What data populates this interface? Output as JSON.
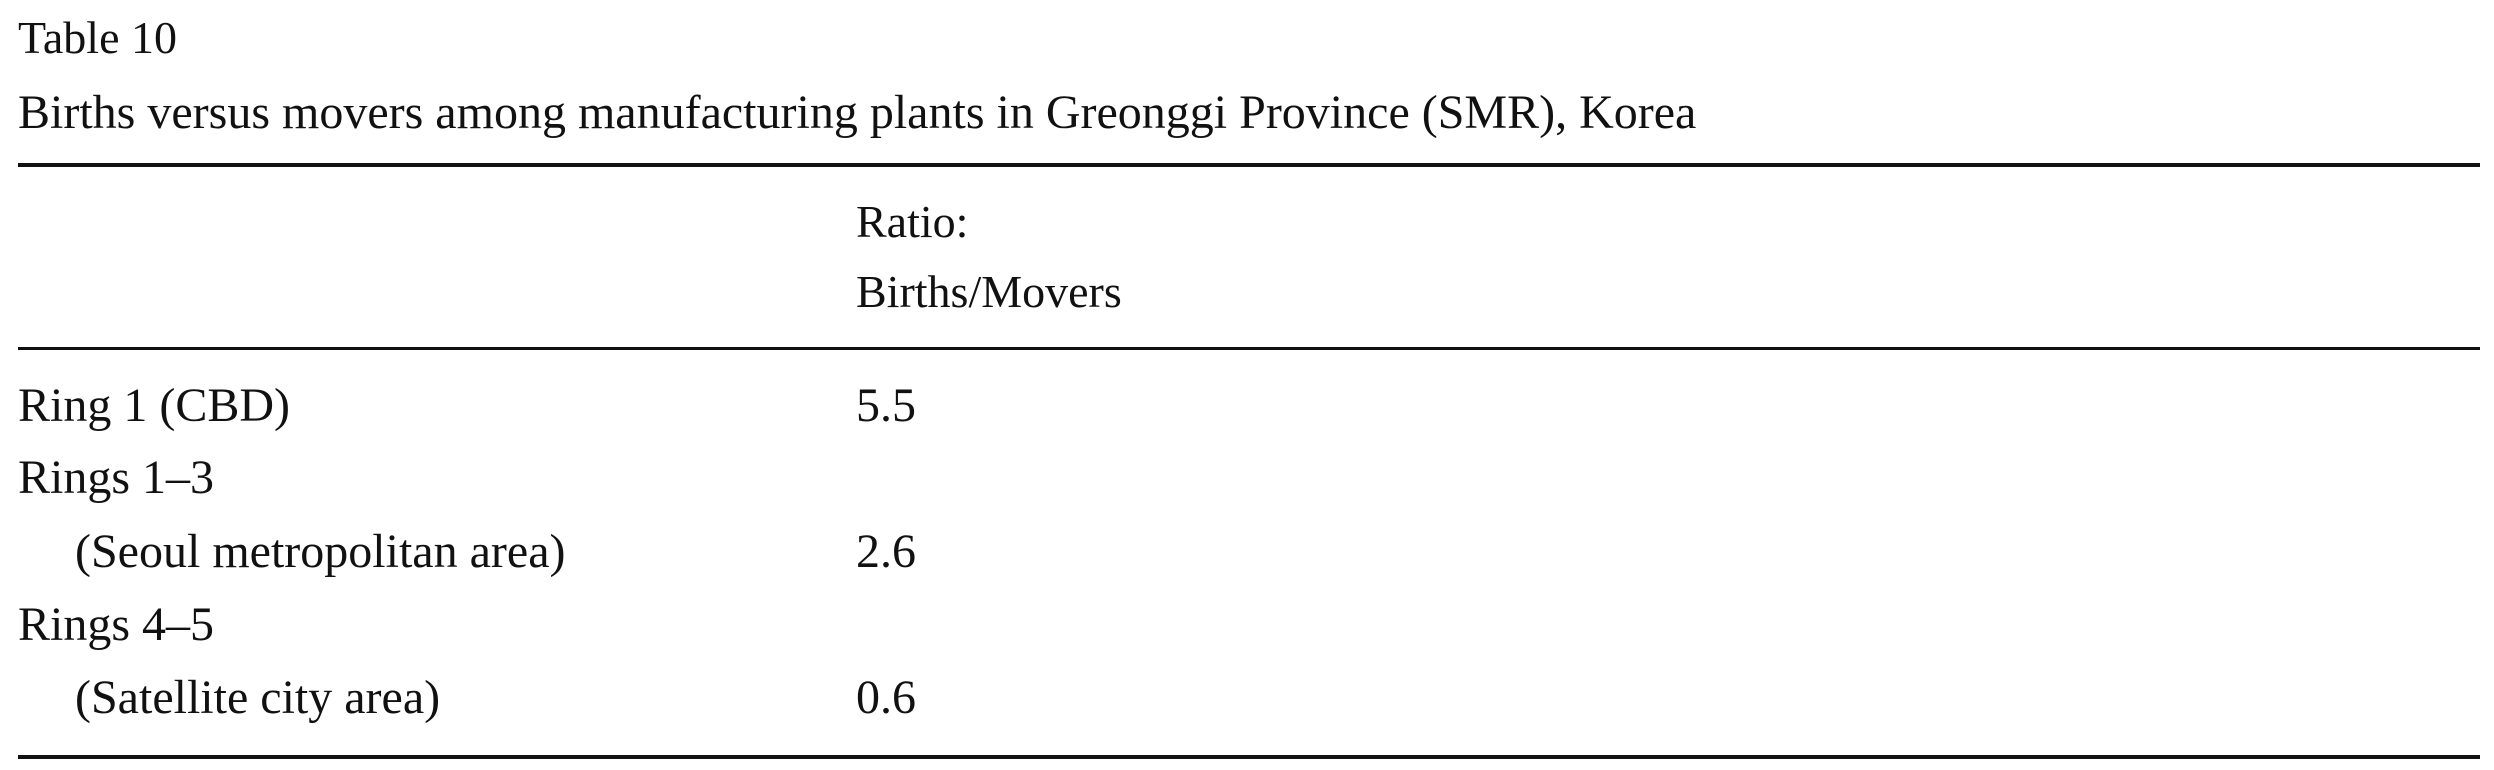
{
  "table": {
    "number": "Table 10",
    "title": "Births versus movers among manufacturing plants in Greonggi Province (SMR), Korea",
    "column_header": [
      "Ratio:",
      "Births/Movers"
    ],
    "rows": [
      {
        "label": "Ring 1 (CBD)",
        "value": "5.5"
      },
      {
        "label": "Rings 1–3"
      },
      {
        "label": "(Seoul metropolitan area)",
        "value": "2.6"
      },
      {
        "label": "Rings 4–5"
      },
      {
        "label": "(Satellite city area)",
        "value": "0.6"
      }
    ]
  }
}
